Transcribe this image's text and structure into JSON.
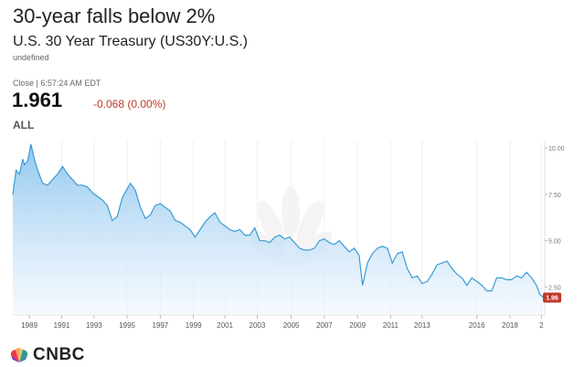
{
  "header": {
    "headline": "30-year falls below 2%",
    "instrument": "U.S. 30 Year Treasury (US30Y:U.S.)",
    "subtext": "undefined"
  },
  "quote": {
    "close_label": "Close | 6:57:24 AM EDT",
    "price": "1.961",
    "change": "-0.068 (0.00%)",
    "range": "ALL"
  },
  "branding": {
    "logo_text": "CNBC"
  },
  "colors": {
    "line": "#3a9bd5",
    "fill_top": "#8cc4ef",
    "fill_bottom": "#eef6fd",
    "badge": "#c0392b"
  },
  "chart_data": {
    "type": "area",
    "title": "",
    "xlabel": "",
    "ylabel": "",
    "ylim": [
      1.0,
      10.4
    ],
    "xlim": [
      1987.8,
      2019.9
    ],
    "y_ticks": [
      "10.00",
      "7.50",
      "5.00",
      "2.50"
    ],
    "y_tick_values": [
      10,
      7.5,
      5,
      2.5
    ],
    "x_ticks": [
      "1989",
      "1991",
      "1993",
      "1995",
      "1997",
      "1999",
      "2001",
      "2003",
      "2005",
      "2007",
      "2009",
      "2011",
      "2013",
      "2016",
      "2018",
      "2"
    ],
    "x_tick_values": [
      1988.8,
      1990.75,
      1992.7,
      1994.7,
      1996.7,
      1998.7,
      2000.6,
      2002.55,
      2004.6,
      2006.6,
      2008.6,
      2010.6,
      2012.5,
      2015.8,
      2017.8,
      2019.7
    ],
    "last_value_label": "1.96",
    "x": [
      1987.8,
      1988.0,
      1988.2,
      1988.4,
      1988.5,
      1988.7,
      1988.9,
      1989.1,
      1989.3,
      1989.6,
      1989.9,
      1990.2,
      1990.5,
      1990.8,
      1991.1,
      1991.4,
      1991.7,
      1992.0,
      1992.3,
      1992.6,
      1992.9,
      1993.2,
      1993.5,
      1993.8,
      1994.1,
      1994.4,
      1994.7,
      1994.9,
      1995.2,
      1995.5,
      1995.8,
      1996.1,
      1996.4,
      1996.7,
      1997.0,
      1997.3,
      1997.6,
      1997.9,
      1998.2,
      1998.5,
      1998.8,
      1999.1,
      1999.4,
      1999.7,
      2000.0,
      2000.3,
      2000.6,
      2000.9,
      2001.2,
      2001.5,
      2001.8,
      2002.1,
      2002.4,
      2002.7,
      2003.0,
      2003.3,
      2003.6,
      2003.9,
      2004.2,
      2004.5,
      2004.8,
      2005.1,
      2005.4,
      2005.7,
      2006.0,
      2006.3,
      2006.6,
      2006.9,
      2007.2,
      2007.5,
      2007.8,
      2008.1,
      2008.4,
      2008.7,
      2008.9,
      2009.2,
      2009.5,
      2009.8,
      2010.1,
      2010.4,
      2010.7,
      2011.0,
      2011.3,
      2011.6,
      2011.9,
      2012.2,
      2012.5,
      2012.8,
      2013.1,
      2013.4,
      2013.7,
      2014.0,
      2014.3,
      2014.6,
      2014.9,
      2015.2,
      2015.5,
      2015.8,
      2016.1,
      2016.4,
      2016.7,
      2017.0,
      2017.3,
      2017.6,
      2017.9,
      2018.2,
      2018.5,
      2018.8,
      2019.1,
      2019.4,
      2019.6,
      2019.8
    ],
    "y": [
      7.5,
      8.8,
      8.6,
      9.4,
      9.1,
      9.3,
      10.2,
      9.4,
      8.8,
      8.1,
      8.0,
      8.3,
      8.6,
      9.0,
      8.6,
      8.3,
      8.0,
      8.0,
      7.9,
      7.6,
      7.4,
      7.2,
      6.9,
      6.1,
      6.3,
      7.3,
      7.8,
      8.1,
      7.7,
      6.8,
      6.2,
      6.4,
      6.9,
      7.0,
      6.8,
      6.6,
      6.1,
      6.0,
      5.8,
      5.6,
      5.2,
      5.6,
      6.0,
      6.3,
      6.5,
      6.0,
      5.8,
      5.6,
      5.5,
      5.6,
      5.3,
      5.3,
      5.7,
      5.0,
      5.0,
      4.9,
      5.2,
      5.3,
      5.1,
      5.2,
      4.9,
      4.6,
      4.5,
      4.5,
      4.6,
      5.0,
      5.1,
      4.9,
      4.8,
      5.0,
      4.7,
      4.4,
      4.6,
      4.2,
      2.6,
      3.8,
      4.3,
      4.6,
      4.7,
      4.6,
      3.8,
      4.3,
      4.4,
      3.5,
      3.0,
      3.1,
      2.7,
      2.8,
      3.2,
      3.7,
      3.8,
      3.9,
      3.5,
      3.2,
      3.0,
      2.6,
      3.0,
      2.8,
      2.6,
      2.3,
      2.3,
      3.0,
      3.0,
      2.9,
      2.9,
      3.1,
      3.0,
      3.3,
      3.0,
      2.6,
      2.1,
      1.96
    ]
  }
}
